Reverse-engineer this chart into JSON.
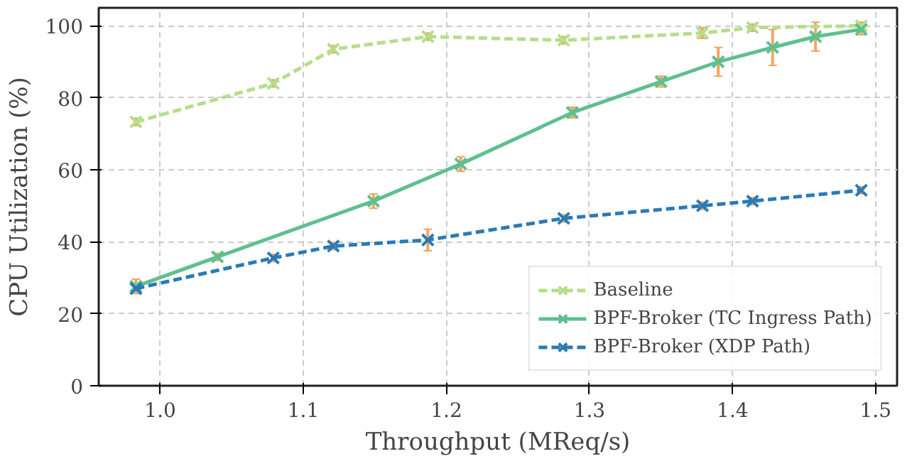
{
  "chart_data": {
    "type": "line",
    "xlabel": "Throughput (MReq/s)",
    "ylabel": "CPU Utilization (%)",
    "xlim": [
      0.957,
      1.515
    ],
    "ylim": [
      0,
      105
    ],
    "xticks": [
      {
        "value": 1.0,
        "label": "1.0"
      },
      1.1,
      1.2,
      1.3,
      1.4,
      1.5
    ],
    "yticks": [
      0,
      20,
      40,
      60,
      80,
      100
    ],
    "grid": true,
    "legend": "bottom right",
    "marker": "cross",
    "series": [
      {
        "name": "Baseline",
        "color": "#b5de8a",
        "line_style": "dashed",
        "x": [
          0.983,
          1.079,
          1.121,
          1.187,
          1.282,
          1.379,
          1.414,
          1.49
        ],
        "values": [
          73.3,
          84,
          93.5,
          97,
          96,
          98,
          99.5,
          100
        ],
        "errors": [
          1,
          1,
          1,
          1,
          1,
          1.5,
          1,
          1
        ]
      },
      {
        "name": "BPF-Broker (TC Ingress Path)",
        "color": "#5ec08e",
        "line_style": "solid",
        "x": [
          0.983,
          1.04,
          1.149,
          1.21,
          1.288,
          1.35,
          1.39,
          1.428,
          1.458,
          1.49
        ],
        "values": [
          27.6,
          35.8,
          51.3,
          61.6,
          75.9,
          84.5,
          90,
          94,
          97,
          99
        ],
        "errors": [
          2,
          1,
          2,
          2,
          1.5,
          1.5,
          4,
          5,
          4,
          1.5
        ]
      },
      {
        "name": "BPF-Broker (XDP Path)",
        "color": "#2a7ab8",
        "line_style": "dashed",
        "x": [
          0.983,
          1.079,
          1.121,
          1.187,
          1.282,
          1.379,
          1.414,
          1.49
        ],
        "values": [
          27,
          35.5,
          38.8,
          40.5,
          46.5,
          50,
          51.3,
          54.3
        ],
        "errors": [
          null,
          1,
          1,
          3,
          1,
          1,
          1,
          1
        ]
      }
    ]
  }
}
